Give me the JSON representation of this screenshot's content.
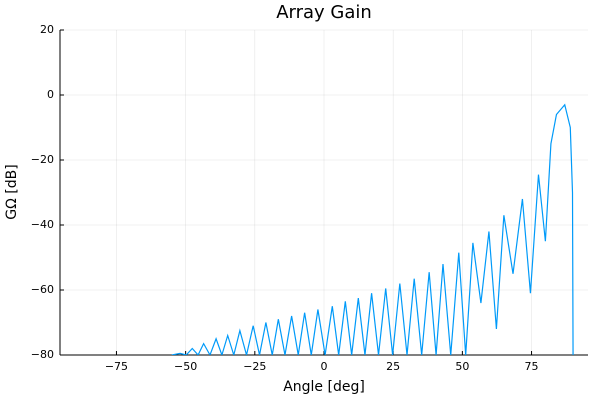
{
  "chart_data": {
    "type": "line",
    "title": "Array Gain",
    "x_label": "Angle [deg]",
    "y_label": "GΩ [dB]",
    "x": [
      -55,
      -52,
      -49.8,
      -47.6,
      -45.5,
      -43.5,
      -41.2,
      -39,
      -36.9,
      -34.8,
      -32.6,
      -30.4,
      -28,
      -25.6,
      -23.3,
      -21,
      -18.7,
      -16.5,
      -14.1,
      -11.7,
      -9.3,
      -7,
      -4.6,
      -2.2,
      0.4,
      3,
      5.3,
      7.7,
      10,
      12.4,
      14.8,
      17.2,
      19.7,
      22.3,
      24.8,
      27.4,
      30,
      32.6,
      35.3,
      38,
      40.5,
      43,
      45.8,
      48.7,
      51.2,
      53.8,
      56.7,
      59.6,
      62.3,
      65,
      68.3,
      71.7,
      74.6,
      77.5,
      80,
      82,
      84,
      87,
      89,
      89.8,
      90
    ],
    "series": [
      {
        "color": "#009af9",
        "values": [
          -80,
          -79.5,
          -80,
          -78,
          -80,
          -76.5,
          -80,
          -75,
          -80,
          -74,
          -80,
          -72.5,
          -80,
          -71,
          -80,
          -70,
          -80,
          -69,
          -80,
          -68,
          -80,
          -67,
          -80,
          -66,
          -80,
          -65,
          -80,
          -63.5,
          -80,
          -62.5,
          -80,
          -61,
          -80,
          -59.5,
          -80,
          -58,
          -80,
          -56.5,
          -80,
          -54.5,
          -80,
          -52,
          -80,
          -48.5,
          -80,
          -45.5,
          -64,
          -42,
          -72,
          -37,
          -55,
          -32,
          -61,
          -24.5,
          -45,
          -15,
          -6,
          -3,
          -10,
          -30,
          -80
        ]
      }
    ],
    "xlim": [
      -95.4,
      95.4
    ],
    "ylim": [
      -80,
      20
    ],
    "xticks": [
      {
        "value": -75,
        "label": "−75"
      },
      {
        "value": -50,
        "label": "−50"
      },
      {
        "value": -25,
        "label": "−25"
      },
      0,
      25,
      50,
      75
    ],
    "yticks": [
      {
        "value": -80,
        "label": "−80"
      },
      {
        "value": -60,
        "label": "−60"
      },
      {
        "value": -40,
        "label": "−40"
      },
      {
        "value": -20,
        "label": "−20"
      },
      0,
      20
    ],
    "grid": true
  }
}
